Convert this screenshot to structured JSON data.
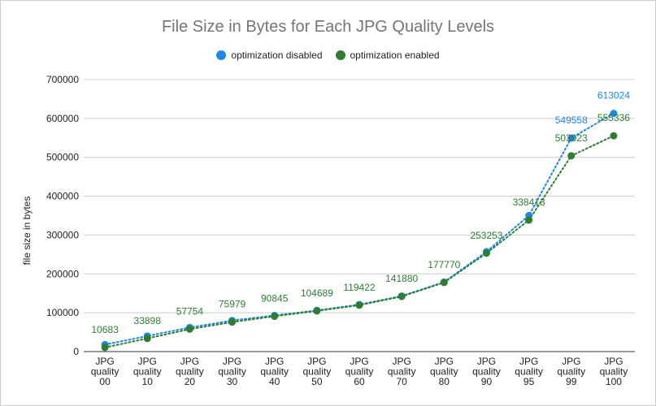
{
  "chart_data": {
    "type": "line",
    "title": "File Size in Bytes for Each JPG Quality Levels",
    "xlabel": "",
    "ylabel": "file size in bytes",
    "ylim": [
      0,
      700000
    ],
    "yticks": [
      0,
      100000,
      200000,
      300000,
      400000,
      500000,
      600000,
      700000
    ],
    "grid": true,
    "legend_position": "top",
    "categories": [
      "JPG quality 00",
      "JPG quality 10",
      "JPG quality 20",
      "JPG quality 30",
      "JPG quality 40",
      "JPG quality 50",
      "JPG quality 60",
      "JPG quality 70",
      "JPG quality 80",
      "JPG quality 90",
      "JPG quality 95",
      "JPG quality 99",
      "JPG quality 100"
    ],
    "series": [
      {
        "name": "optimization disabled",
        "color": "#1e88e5",
        "values": [
          18000,
          40000,
          62000,
          80000,
          93000,
          106000,
          121000,
          143000,
          179000,
          257000,
          350000,
          549558,
          613024
        ],
        "labels": [
          "",
          "",
          "",
          "",
          "",
          "",
          "",
          "",
          "",
          "",
          "",
          "549558",
          "613024"
        ]
      },
      {
        "name": "optimization enabled",
        "color": "#2e7d32",
        "values": [
          10683,
          33898,
          57754,
          75979,
          90845,
          104689,
          119422,
          141880,
          177770,
          253253,
          338413,
          503923,
          555336
        ],
        "labels": [
          "10683",
          "33898",
          "57754",
          "75979",
          "90845",
          "104689",
          "119422",
          "141880",
          "177770",
          "253253",
          "338413",
          "503923",
          "555336"
        ]
      }
    ]
  }
}
